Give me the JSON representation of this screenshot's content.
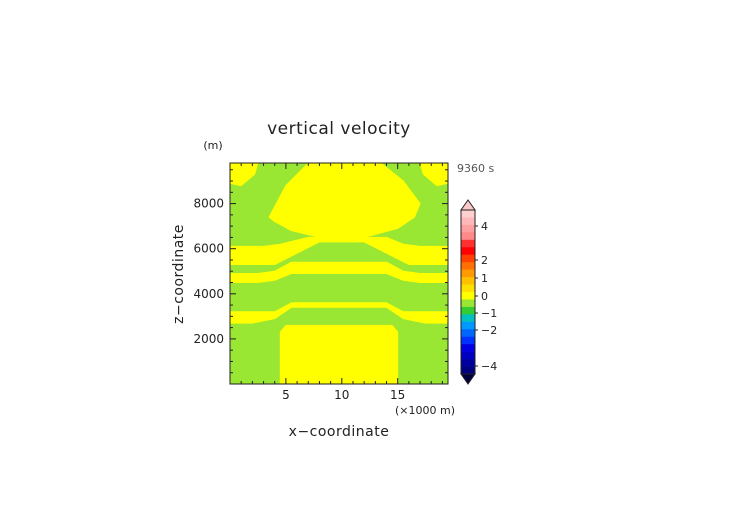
{
  "chart_data": {
    "type": "heatmap",
    "title": "vertical velocity",
    "xlabel": "x−coordinate",
    "ylabel": "z−coordinate",
    "x_unit": "(×1000 m)",
    "y_unit": "(m)",
    "time_label": "9360 s",
    "xlim": [
      0,
      19.5
    ],
    "ylim": [
      0,
      9800
    ],
    "x_ticks": [
      5,
      10,
      15
    ],
    "y_ticks": [
      2000,
      4000,
      6000,
      8000
    ],
    "grid": false,
    "legend": "colorbar right",
    "background_value_color": "#99E633",
    "regions": [
      {
        "label": "lower updraft",
        "value_range": "0 to 0.5",
        "color": "#FFFF00",
        "x": [
          4.5,
          4.5,
          5.0,
          14.5,
          15.0,
          15.0
        ],
        "z": [
          0,
          2300,
          2600,
          2600,
          2300,
          0
        ]
      },
      {
        "label": "band",
        "value_range": "0 to 0.5",
        "color": "#FFFF00",
        "x": [
          0,
          0,
          2.0,
          4.0,
          5.5,
          14.0,
          15.5,
          17.5,
          19.5,
          19.5,
          17.5,
          15.5,
          14.0,
          5.5,
          4.0,
          2.0
        ],
        "z": [
          2700,
          3200,
          3200,
          3200,
          3600,
          3600,
          3200,
          3200,
          3200,
          2700,
          2700,
          2900,
          3400,
          3400,
          2900,
          2700
        ]
      },
      {
        "label": "band",
        "value_range": "0 to 0.5",
        "color": "#FFFF00",
        "x": [
          0,
          0,
          2.5,
          4.0,
          5.5,
          14.0,
          15.5,
          17.0,
          19.5,
          19.5,
          17.0,
          15.5,
          14.0,
          5.5,
          4.0,
          2.5
        ],
        "z": [
          4500,
          4900,
          4900,
          5000,
          5400,
          5400,
          5000,
          4900,
          4900,
          4500,
          4500,
          4600,
          4900,
          4900,
          4600,
          4500
        ]
      },
      {
        "label": "upper updraft",
        "value_range": "0 to 0.5",
        "color": "#FFFF00",
        "x": [
          0,
          0,
          3.0,
          4.5,
          7.0,
          14.0,
          15.5,
          17.0,
          19.5,
          19.5,
          16.0,
          14.0,
          12.0,
          8.0,
          6.0,
          4.0
        ],
        "z": [
          5300,
          6100,
          6100,
          6200,
          6500,
          6500,
          6200,
          6100,
          6100,
          5300,
          5300,
          5800,
          6300,
          6300,
          5800,
          5300
        ]
      },
      {
        "label": "upper core",
        "value_range": "0 to 0.5",
        "color": "#FFFF00",
        "x": [
          7.0,
          8.0,
          12.5,
          13.5,
          15.5,
          17.0,
          16.5,
          15.0,
          12.0,
          10.0,
          8.0,
          5.5,
          4.0,
          3.5,
          5.0
        ],
        "z": [
          9800,
          9800,
          9800,
          9800,
          9000,
          8000,
          7400,
          6900,
          6500,
          6400,
          6500,
          6800,
          7200,
          7400,
          8800
        ]
      },
      {
        "label": "corner left",
        "value_range": "0 to 0.5",
        "color": "#FFFF00",
        "x": [
          0,
          0,
          1.0,
          2.2,
          2.5
        ],
        "z": [
          9800,
          8900,
          8800,
          9300,
          9800
        ]
      },
      {
        "label": "corner right",
        "value_range": "0 to 0.5",
        "color": "#FFFF00",
        "x": [
          19.5,
          19.5,
          18.5,
          17.3,
          17.0
        ],
        "z": [
          9800,
          8900,
          8800,
          9300,
          9800
        ]
      }
    ],
    "colorbar": {
      "tick_labels": [
        "4",
        "2",
        "1",
        "0",
        "−1",
        "−2",
        "−4"
      ],
      "tick_values": [
        4,
        2,
        1,
        0,
        -1,
        -2,
        -4
      ],
      "levels": [
        {
          "color": "#FFD0D0"
        },
        {
          "color": "#FFB8B8"
        },
        {
          "color": "#FFA0A0"
        },
        {
          "color": "#FF8888"
        },
        {
          "color": "#FF3030"
        },
        {
          "color": "#FF0000"
        },
        {
          "color": "#FF4000"
        },
        {
          "color": "#FF7000"
        },
        {
          "color": "#FF9A00"
        },
        {
          "color": "#FFC000"
        },
        {
          "color": "#FFE000"
        },
        {
          "color": "#FFFF00"
        },
        {
          "color": "#99E633"
        },
        {
          "color": "#33CC33"
        },
        {
          "color": "#00C0C0"
        },
        {
          "color": "#0099FF"
        },
        {
          "color": "#0066FF"
        },
        {
          "color": "#0033FF"
        },
        {
          "color": "#0000E0"
        },
        {
          "color": "#0000C0"
        },
        {
          "color": "#0000A0"
        },
        {
          "color": "#000080"
        }
      ],
      "over_color": "#FFC8C8",
      "under_color": "#000040"
    }
  }
}
